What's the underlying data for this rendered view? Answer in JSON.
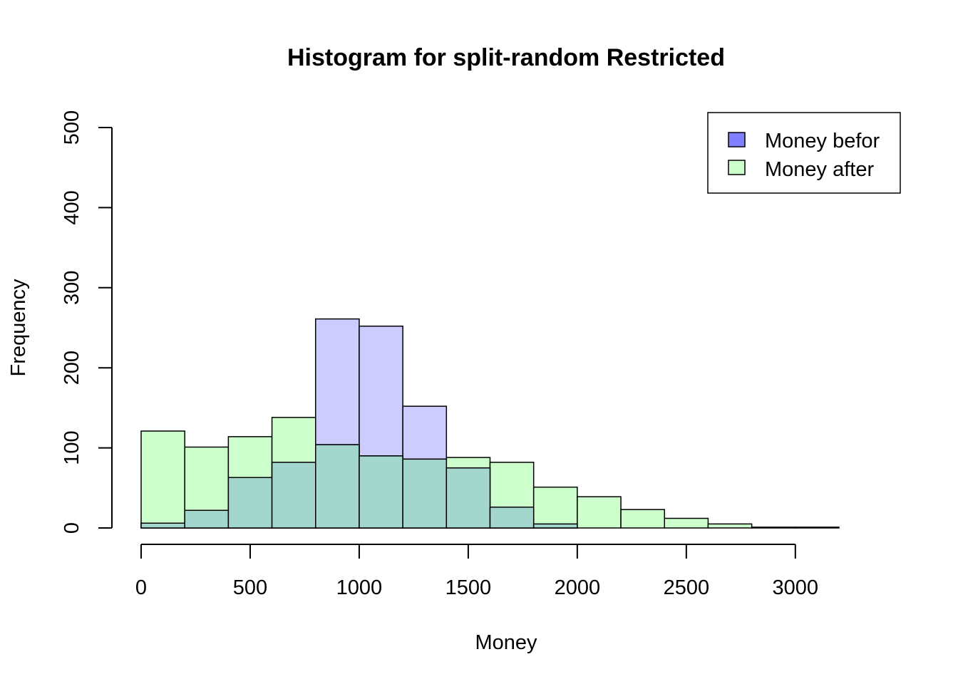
{
  "chart_data": {
    "type": "bar",
    "title": "Histogram for split-random Restricted",
    "xlabel": "Money",
    "ylabel": "Frequency",
    "xlim": [
      0,
      3200
    ],
    "ylim": [
      0,
      500
    ],
    "x_ticks": [
      "0",
      "500",
      "1000",
      "1500",
      "2000",
      "2500",
      "3000"
    ],
    "y_ticks": [
      "0",
      "100",
      "200",
      "300",
      "400",
      "500"
    ],
    "bin_edges": [
      0,
      200,
      400,
      600,
      800,
      1000,
      1200,
      1400,
      1600,
      1800,
      2000,
      2200,
      2400,
      2600,
      2800,
      3000,
      3200
    ],
    "legend_position": "top-right",
    "series": [
      {
        "name": "Money befor",
        "fill_color": "#ccccff",
        "legend_color": "#8080ff",
        "values": [
          6,
          22,
          63,
          82,
          261,
          252,
          152,
          75,
          26,
          5,
          0,
          0,
          0,
          0,
          0,
          0
        ]
      },
      {
        "name": "Money after",
        "fill_color": "#ccffcc",
        "legend_color": "#ccffcc",
        "values": [
          121,
          101,
          114,
          138,
          104,
          90,
          86,
          88,
          82,
          51,
          39,
          23,
          12,
          5,
          1,
          1
        ]
      }
    ],
    "overlap_color": "#a3d6cc",
    "grid": false
  }
}
